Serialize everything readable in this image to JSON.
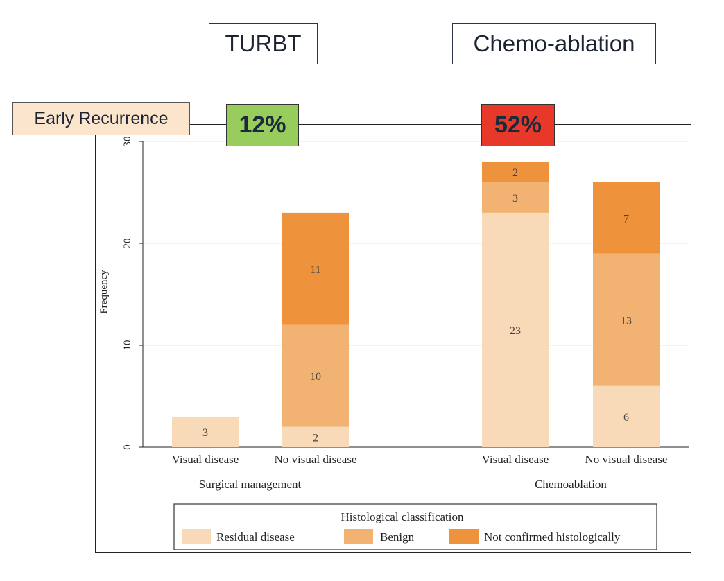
{
  "headers": {
    "turbt": "TURBT",
    "chemo": "Chemo-ablation",
    "early_recurrence": "Early Recurrence",
    "turbt_pct": "12%",
    "chemo_pct": "52%"
  },
  "colors": {
    "residual": "#f8d9b8",
    "benign": "#f2b272",
    "not_confirmed": "#ee923c",
    "turbt_pct_bg": "#98cc5c",
    "chemo_pct_bg": "#e8382a"
  },
  "chart_data": {
    "type": "bar",
    "stacked": true,
    "ylabel": "Frequency",
    "ylim": [
      0,
      30
    ],
    "yticks": [
      0,
      10,
      20,
      30
    ],
    "grid": true,
    "groups": [
      {
        "label": "Surgical management",
        "categories": [
          "Visual disease",
          "No visual disease"
        ]
      },
      {
        "label": "Chemoablation",
        "categories": [
          "Visual disease",
          "No visual disease"
        ]
      }
    ],
    "series": [
      {
        "name": "Residual disease",
        "values": [
          3,
          2,
          23,
          6
        ]
      },
      {
        "name": "Benign",
        "values": [
          0,
          10,
          3,
          13
        ]
      },
      {
        "name": "Not confirmed histologically",
        "values": [
          0,
          11,
          2,
          7
        ]
      }
    ],
    "legend": {
      "title": "Histological classification",
      "position": "bottom"
    }
  }
}
